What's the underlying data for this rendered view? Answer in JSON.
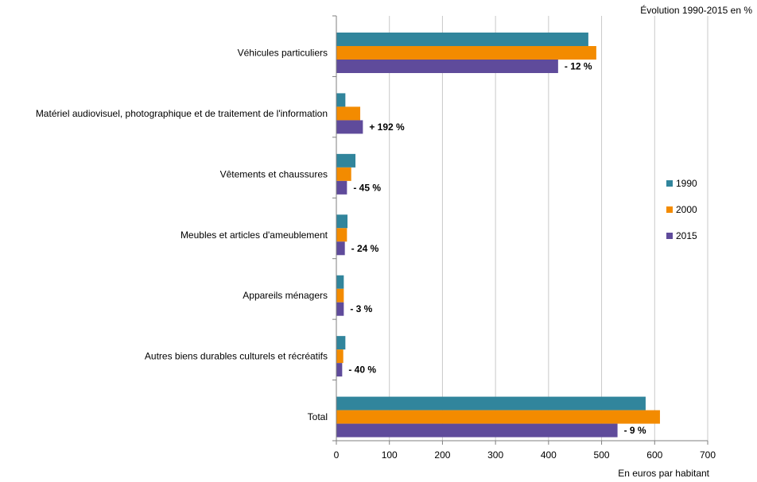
{
  "chart_data": {
    "type": "bar",
    "orientation": "horizontal",
    "categories": [
      "Véhicules particuliers",
      "Matériel audiovisuel, photographique et de traitement de l'information",
      "Vêtements et chaussures",
      "Meubles et articles d'ameublement",
      "Appareils ménagers",
      "Autres biens durables culturels et récréatifs",
      "Total"
    ],
    "series": [
      {
        "name": "1990",
        "color": "#31859C",
        "values": [
          475,
          17,
          36,
          21,
          14,
          17,
          583
        ]
      },
      {
        "name": "2000",
        "color": "#F38B00",
        "values": [
          490,
          45,
          28,
          20,
          14,
          13,
          610
        ]
      },
      {
        "name": "2015",
        "color": "#5F4B9B",
        "values": [
          418,
          50,
          20,
          16,
          14,
          11,
          530
        ]
      }
    ],
    "annotations": [
      "- 12 %",
      "+ 192 %",
      "- 45 %",
      "- 24 %",
      "- 3 %",
      "- 40 %",
      "- 9 %"
    ],
    "annotation_title": "Évolution  1990-2015  en %",
    "xlabel": "En euros  par habitant",
    "xlim": [
      0,
      700
    ],
    "xticks": [
      0,
      100,
      200,
      300,
      400,
      500,
      600,
      700
    ],
    "grid": true,
    "legend_position": "right"
  }
}
